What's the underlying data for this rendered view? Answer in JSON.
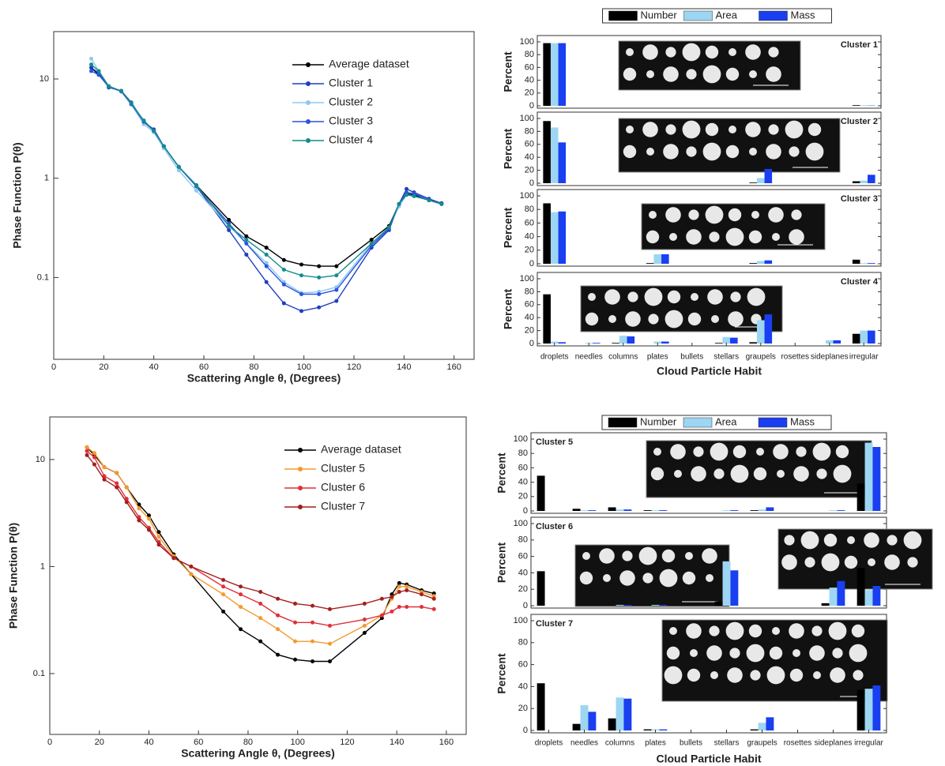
{
  "chart_data": [
    {
      "type": "line",
      "ylog": true,
      "legend": "upper right",
      "xlabel": "Scattering Angle θ, (Degrees)",
      "ylabel": "Phase Function P(θ)",
      "xlim": [
        0,
        168
      ],
      "xticks": [
        0,
        20,
        40,
        60,
        80,
        100,
        120,
        140,
        160
      ],
      "ylim": [
        0.015,
        30
      ],
      "yticks": [
        0.1,
        1,
        10
      ],
      "x": [
        15,
        18,
        22,
        27,
        31,
        36,
        40,
        44,
        50,
        57,
        70,
        77,
        85,
        92,
        99,
        106,
        113,
        127,
        134,
        138,
        141,
        144,
        150,
        155
      ],
      "series": [
        {
          "name": "Average dataset",
          "color": "#000000",
          "values": [
            13,
            11,
            8.5,
            7.5,
            5.5,
            3.8,
            3,
            2.1,
            1.3,
            0.85,
            0.38,
            0.26,
            0.2,
            0.15,
            0.135,
            0.13,
            0.13,
            0.24,
            0.33,
            0.55,
            0.7,
            0.68,
            0.6,
            0.56
          ]
        },
        {
          "name": "Cluster 1",
          "color": "#1f3fbf",
          "values": [
            13,
            11.5,
            8.2,
            7.6,
            5.8,
            3.7,
            3.1,
            2.1,
            1.3,
            0.83,
            0.3,
            0.17,
            0.09,
            0.055,
            0.046,
            0.05,
            0.058,
            0.2,
            0.3,
            0.55,
            0.78,
            0.72,
            0.62,
            0.56
          ]
        },
        {
          "name": "Cluster 2",
          "color": "#8ec8f0",
          "values": [
            16,
            12,
            8.5,
            7.5,
            5.5,
            3.5,
            2.9,
            2,
            1.2,
            0.75,
            0.33,
            0.22,
            0.14,
            0.09,
            0.07,
            0.072,
            0.08,
            0.22,
            0.32,
            0.52,
            0.68,
            0.66,
            0.6,
            0.55
          ]
        },
        {
          "name": "Cluster 3",
          "color": "#2b54e0",
          "values": [
            12,
            11,
            8.3,
            7.5,
            5.6,
            3.7,
            3,
            2.1,
            1.3,
            0.83,
            0.35,
            0.22,
            0.13,
            0.085,
            0.068,
            0.068,
            0.075,
            0.21,
            0.31,
            0.55,
            0.72,
            0.7,
            0.6,
            0.55
          ]
        },
        {
          "name": "Cluster 4",
          "color": "#128c8c",
          "values": [
            14,
            12,
            8.4,
            7.6,
            5.7,
            3.8,
            3,
            2.1,
            1.3,
            0.85,
            0.33,
            0.24,
            0.17,
            0.12,
            0.105,
            0.1,
            0.105,
            0.22,
            0.32,
            0.55,
            0.68,
            0.66,
            0.6,
            0.55
          ]
        }
      ]
    },
    {
      "type": "bar",
      "xlabel": "Cloud Particle Habit",
      "ylabel": "Percent",
      "ylim": [
        0,
        100
      ],
      "yticks": [
        0,
        20,
        40,
        60,
        80,
        100
      ],
      "categories": [
        "droplets",
        "needles",
        "columns",
        "plates",
        "bullets",
        "stellars",
        "graupels",
        "rosettes",
        "sideplanes",
        "irregular"
      ],
      "series": [
        {
          "name": "Number",
          "color": "#000000"
        },
        {
          "name": "Area",
          "color": "#9dd6f2"
        },
        {
          "name": "Mass",
          "color": "#1a3ff0"
        }
      ],
      "panels": [
        {
          "title": "Cluster 1",
          "values": [
            [
              98,
              0,
              0,
              0,
              0,
              0,
              0,
              0,
              0,
              1
            ],
            [
              98,
              0,
              0,
              0,
              0,
              0,
              0,
              0,
              0,
              1
            ],
            [
              98,
              0,
              0,
              0,
              0,
              0,
              0,
              0,
              0,
              0.5
            ]
          ]
        },
        {
          "title": "Cluster 2",
          "values": [
            [
              96,
              0,
              0,
              0,
              0,
              0,
              1,
              0,
              0,
              3
            ],
            [
              86,
              0,
              0,
              0,
              0,
              0,
              8,
              0,
              0,
              4
            ],
            [
              63,
              0,
              0,
              0,
              0,
              0,
              22,
              0,
              0,
              13
            ]
          ]
        },
        {
          "title": "Cluster 3",
          "values": [
            [
              89,
              0,
              0,
              1,
              0,
              0,
              1,
              0,
              0,
              6
            ],
            [
              76,
              0,
              0,
              14,
              0,
              0,
              4,
              0,
              0,
              1
            ],
            [
              77,
              0,
              0,
              14,
              0,
              0,
              5,
              0,
              0,
              1
            ]
          ]
        },
        {
          "title": "Cluster 4",
          "values": [
            [
              76,
              0,
              1,
              0,
              0,
              1,
              2,
              0,
              0,
              15
            ],
            [
              3,
              1,
              12,
              3,
              0,
              10,
              36,
              0,
              5,
              20
            ],
            [
              2,
              1,
              11,
              3,
              0,
              9,
              45,
              0,
              5,
              20
            ]
          ]
        }
      ]
    },
    {
      "type": "line",
      "ylog": true,
      "legend": "upper right",
      "xlabel": "Scattering Angle θ, (Degrees)",
      "ylabel": "Phase Function P(θ)",
      "xlim": [
        0,
        168
      ],
      "xticks": [
        0,
        20,
        40,
        60,
        80,
        100,
        120,
        140,
        160
      ],
      "ylim": [
        0.027,
        25
      ],
      "yticks": [
        0.1,
        1,
        10
      ],
      "x": [
        15,
        18,
        22,
        27,
        31,
        36,
        40,
        44,
        50,
        57,
        70,
        77,
        85,
        92,
        99,
        106,
        113,
        127,
        134,
        138,
        141,
        144,
        150,
        155
      ],
      "series": [
        {
          "name": "Average dataset",
          "color": "#000000",
          "values": [
            13,
            11,
            8.5,
            7.5,
            5.5,
            3.8,
            3,
            2.1,
            1.3,
            0.85,
            0.38,
            0.26,
            0.2,
            0.15,
            0.135,
            0.13,
            0.13,
            0.24,
            0.33,
            0.55,
            0.7,
            0.68,
            0.6,
            0.56
          ]
        },
        {
          "name": "Cluster 5",
          "color": "#f39a2a",
          "values": [
            13,
            11.5,
            8.5,
            7.5,
            5.5,
            3.5,
            2.8,
            1.9,
            1.25,
            0.85,
            0.55,
            0.42,
            0.33,
            0.26,
            0.2,
            0.2,
            0.19,
            0.28,
            0.35,
            0.5,
            0.65,
            0.65,
            0.58,
            0.53
          ]
        },
        {
          "name": "Cluster 6",
          "color": "#e0303a",
          "values": [
            12,
            10.5,
            7,
            6,
            4.3,
            2.9,
            2.3,
            1.7,
            1.2,
            1,
            0.65,
            0.55,
            0.45,
            0.35,
            0.3,
            0.3,
            0.28,
            0.32,
            0.35,
            0.38,
            0.42,
            0.42,
            0.42,
            0.4
          ]
        },
        {
          "name": "Cluster 7",
          "color": "#a31f1f",
          "values": [
            11,
            9,
            6.5,
            5.5,
            4,
            2.7,
            2.2,
            1.6,
            1.2,
            1,
            0.75,
            0.65,
            0.58,
            0.5,
            0.45,
            0.43,
            0.4,
            0.45,
            0.5,
            0.52,
            0.58,
            0.6,
            0.55,
            0.5
          ]
        }
      ]
    },
    {
      "type": "bar",
      "xlabel": "Cloud Particle Habit",
      "ylabel": "Percent",
      "ylim": [
        0,
        100
      ],
      "yticks": [
        0,
        20,
        40,
        60,
        80,
        100
      ],
      "categories": [
        "droplets",
        "needles",
        "columns",
        "plates",
        "bullets",
        "stellars",
        "graupels",
        "rosettes",
        "sideplanes",
        "irregular"
      ],
      "series": [
        {
          "name": "Number",
          "color": "#000000"
        },
        {
          "name": "Area",
          "color": "#9dd6f2"
        },
        {
          "name": "Mass",
          "color": "#1a3ff0"
        }
      ],
      "panels": [
        {
          "title": "Cluster 5",
          "values": [
            [
              49,
              3,
              5,
              1,
              0,
              0,
              1,
              0,
              0,
              38
            ],
            [
              0,
              1,
              2,
              1,
              0,
              1,
              2,
              0,
              1,
              95
            ],
            [
              0,
              1,
              2,
              1,
              0,
              1,
              5,
              0,
              1,
              89
            ]
          ]
        },
        {
          "title": "Cluster 6",
          "values": [
            [
              42,
              0,
              0,
              0,
              0,
              5,
              0,
              0,
              3,
              46
            ],
            [
              0,
              0,
              1,
              1,
              0,
              54,
              0,
              0,
              22,
              19
            ],
            [
              0,
              0,
              1,
              1,
              0,
              43,
              0,
              0,
              30,
              24
            ]
          ]
        },
        {
          "title": "Cluster 7",
          "values": [
            [
              43,
              6,
              11,
              1,
              0,
              0,
              1,
              0,
              0,
              37
            ],
            [
              0,
              23,
              30,
              1,
              0,
              0,
              7,
              0,
              0,
              38
            ],
            [
              0,
              17,
              29,
              1,
              0,
              0,
              12,
              0,
              0,
              41
            ]
          ]
        }
      ]
    }
  ]
}
